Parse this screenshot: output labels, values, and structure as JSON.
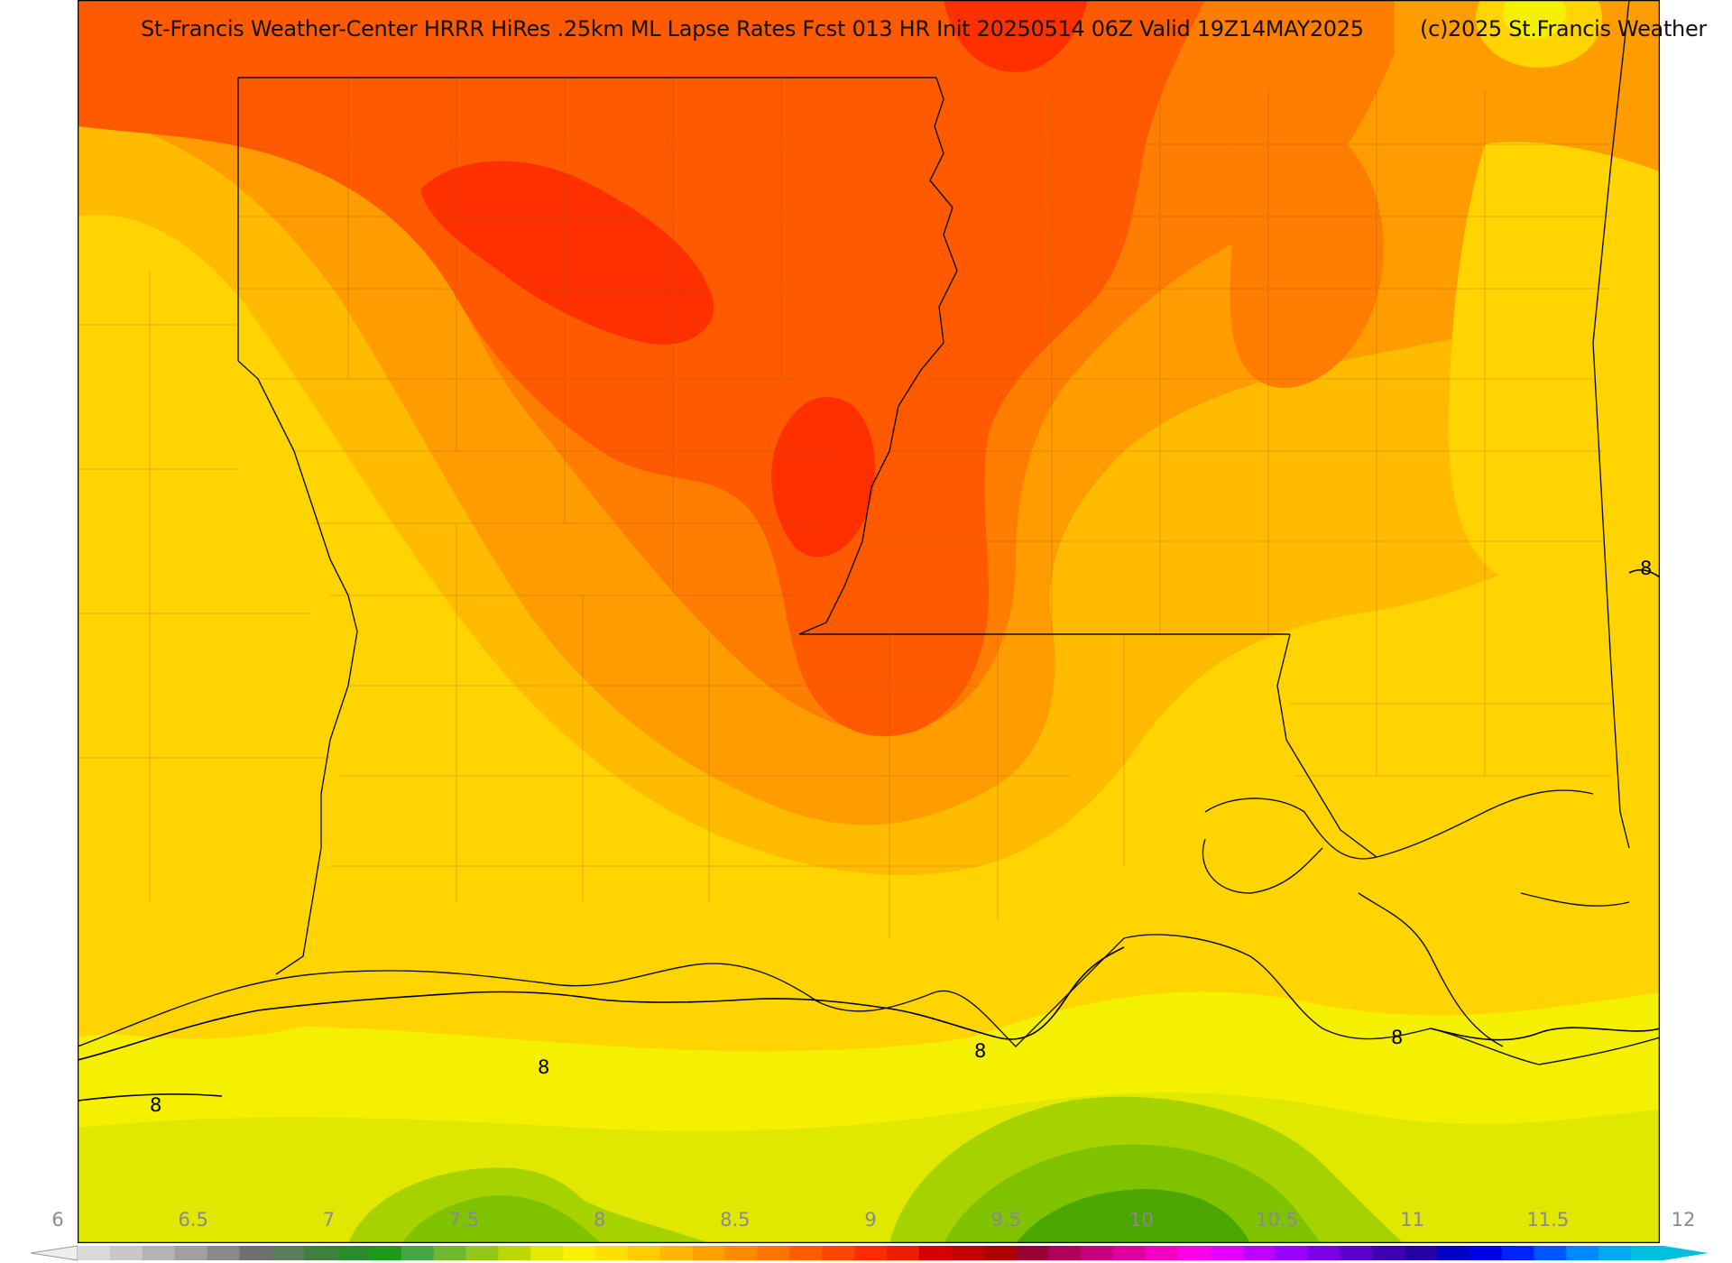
{
  "header": {
    "title": "St-Francis Weather-Center HRRR HiRes .25km ML Lapse Rates  Fcst 013 HR Init 20250514 06Z  Valid 19Z14MAY2025",
    "copyright": "(c)2025 St.Francis Weather"
  },
  "map": {
    "field": "ML Lapse Rates",
    "region": "Louisiana / Arkansas / Mississippi",
    "contour_level": "8",
    "contour_labels": [
      "8",
      "8",
      "8",
      "8",
      "8"
    ],
    "colors": {
      "lt_7_5": "#b8d800",
      "v7_75": "#e0e800",
      "v8_0": "#f5ef00",
      "v8_25": "#ffd400",
      "v8_5": "#ffbb00",
      "v8_75": "#ff9c00",
      "v9_0": "#ff7d00",
      "v9_25": "#ff5a00",
      "v9_5": "#ff3000",
      "green_dark": "#4ca600",
      "green_mid": "#7fc200",
      "green_lt": "#a6d300"
    }
  },
  "colorbar": {
    "tick_labels": [
      "6",
      "6.5",
      "7",
      "7.5",
      "8",
      "8.5",
      "9",
      "9.5",
      "10",
      "10.5",
      "11",
      "11.5",
      "12"
    ],
    "colors": [
      "#d9d9d9",
      "#c8c8c8",
      "#b3b3b3",
      "#a0a0a0",
      "#8a8a8a",
      "#707070",
      "#5a7d5a",
      "#3f7f3f",
      "#2d8a2d",
      "#1f9a1f",
      "#46a646",
      "#6fb82f",
      "#95c61a",
      "#bcd800",
      "#e3ea00",
      "#f7f000",
      "#ffe000",
      "#ffcc00",
      "#ffb600",
      "#ff9f00",
      "#ff8a00",
      "#ff7300",
      "#ff5c00",
      "#ff4500",
      "#ff2c00",
      "#ee1c00",
      "#d90000",
      "#c40000",
      "#ae0000",
      "#990033",
      "#b0005a",
      "#c8007c",
      "#e0009e",
      "#f500c3",
      "#ff00e6",
      "#e600ff",
      "#c000ff",
      "#9900ff",
      "#7a00e6",
      "#5a00cc",
      "#3d00b3",
      "#2400a6",
      "#0000c8",
      "#0000e6",
      "#0022ff",
      "#0055ff",
      "#0088ff",
      "#00aaf0",
      "#00c0e0"
    ]
  }
}
